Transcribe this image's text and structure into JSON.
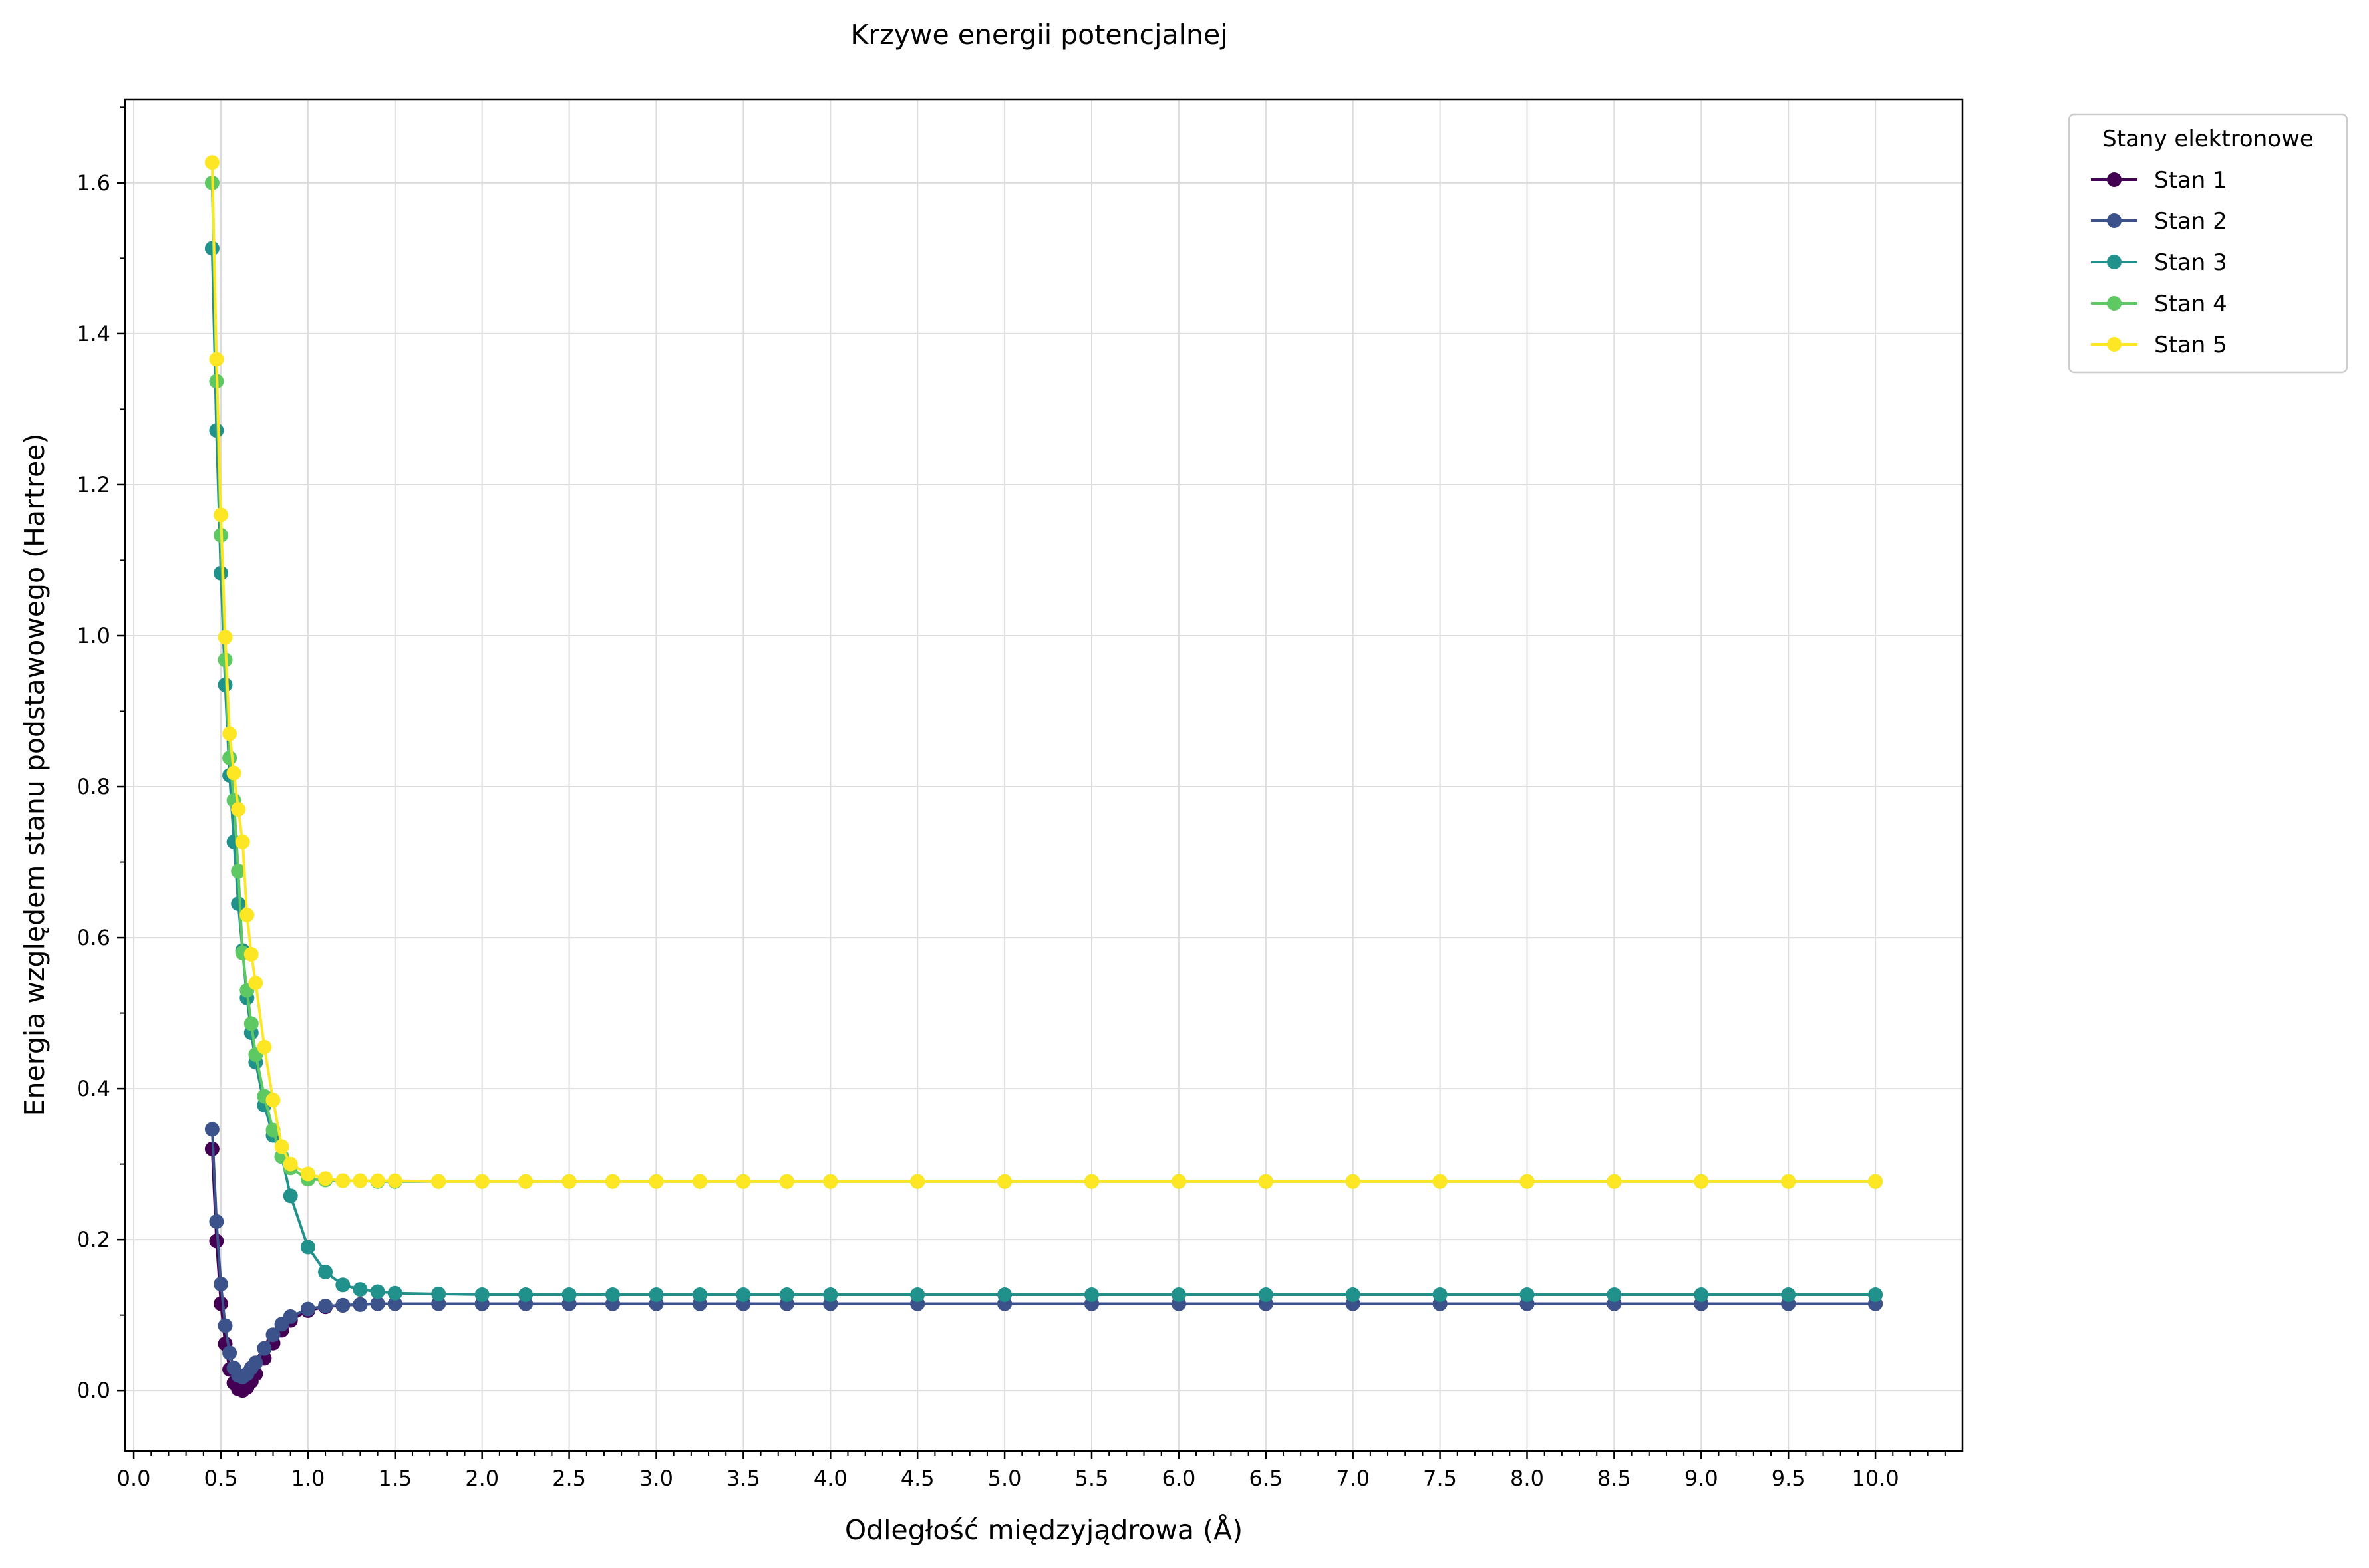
{
  "chart_data": {
    "type": "line",
    "title": "Krzywe energii potencjalnej",
    "xlabel": "Odległość międzyjądrowa (Å)",
    "ylabel": "Energia względem stanu podstawowego (Hartree)",
    "xlim": [
      -0.05,
      10.5
    ],
    "ylim": [
      -0.08,
      1.71
    ],
    "xticks": [
      "0.0",
      "0.5",
      "1.0",
      "1.5",
      "2.0",
      "2.5",
      "3.0",
      "3.5",
      "4.0",
      "4.5",
      "5.0",
      "5.5",
      "6.0",
      "6.5",
      "7.0",
      "7.5",
      "8.0",
      "8.5",
      "9.0",
      "9.5",
      "10.0"
    ],
    "yticks": [
      "0.0",
      "0.2",
      "0.4",
      "0.6",
      "0.8",
      "1.0",
      "1.2",
      "1.4",
      "1.6"
    ],
    "grid": true,
    "legend": {
      "title": "Stany elektronowe",
      "placement": "outside-top-right"
    },
    "x": [
      0.45,
      0.475,
      0.5,
      0.525,
      0.55,
      0.575,
      0.6,
      0.625,
      0.65,
      0.675,
      0.7,
      0.75,
      0.8,
      0.85,
      0.9,
      1.0,
      1.1,
      1.2,
      1.3,
      1.4,
      1.5,
      1.75,
      2.0,
      2.25,
      2.5,
      2.75,
      3.0,
      3.25,
      3.5,
      3.75,
      4.0,
      4.5,
      5.0,
      5.5,
      6.0,
      6.5,
      7.0,
      7.5,
      8.0,
      8.5,
      9.0,
      9.5,
      10.0
    ],
    "series": [
      {
        "name": "Stan 1",
        "color": "#440154",
        "values": [
          0.32,
          0.198,
          0.115,
          0.062,
          0.028,
          0.01,
          0.002,
          0.0,
          0.004,
          0.012,
          0.022,
          0.043,
          0.063,
          0.08,
          0.093,
          0.106,
          0.111,
          0.113,
          0.114,
          0.115,
          0.115,
          0.115,
          0.115,
          0.115,
          0.115,
          0.115,
          0.115,
          0.115,
          0.115,
          0.115,
          0.115,
          0.115,
          0.115,
          0.115,
          0.115,
          0.115,
          0.115,
          0.115,
          0.115,
          0.115,
          0.115,
          0.115,
          0.115
        ]
      },
      {
        "name": "Stan 2",
        "color": "#3b528b",
        "values": [
          0.346,
          0.224,
          0.141,
          0.086,
          0.05,
          0.03,
          0.02,
          0.018,
          0.022,
          0.03,
          0.037,
          0.056,
          0.074,
          0.088,
          0.098,
          0.108,
          0.112,
          0.113,
          0.114,
          0.115,
          0.115,
          0.115,
          0.115,
          0.115,
          0.115,
          0.115,
          0.115,
          0.115,
          0.115,
          0.115,
          0.115,
          0.115,
          0.115,
          0.115,
          0.115,
          0.115,
          0.115,
          0.115,
          0.115,
          0.115,
          0.115,
          0.115,
          0.115
        ]
      },
      {
        "name": "Stan 3",
        "color": "#21918c",
        "values": [
          1.513,
          1.272,
          1.083,
          0.935,
          0.815,
          0.727,
          0.645,
          0.583,
          0.52,
          0.474,
          0.435,
          0.378,
          0.338,
          0.31,
          0.258,
          0.19,
          0.157,
          0.14,
          0.134,
          0.131,
          0.129,
          0.128,
          0.127,
          0.127,
          0.127,
          0.127,
          0.127,
          0.127,
          0.127,
          0.127,
          0.127,
          0.127,
          0.127,
          0.127,
          0.127,
          0.127,
          0.127,
          0.127,
          0.127,
          0.127,
          0.127,
          0.127,
          0.127
        ]
      },
      {
        "name": "Stan 4",
        "color": "#5ec962",
        "values": [
          1.6,
          1.337,
          1.133,
          0.968,
          0.838,
          0.782,
          0.688,
          0.58,
          0.53,
          0.486,
          0.445,
          0.39,
          0.345,
          0.31,
          0.295,
          0.28,
          0.279,
          0.278,
          0.278,
          0.277,
          0.277,
          0.277,
          0.277,
          0.277,
          0.277,
          0.277,
          0.277,
          0.277,
          0.277,
          0.277,
          0.277,
          0.277,
          0.277,
          0.277,
          0.277,
          0.277,
          0.277,
          0.277,
          0.277,
          0.277,
          0.277,
          0.277,
          0.277
        ]
      },
      {
        "name": "Stan 5",
        "color": "#fde725",
        "values": [
          1.627,
          1.366,
          1.16,
          0.998,
          0.87,
          0.818,
          0.77,
          0.727,
          0.63,
          0.578,
          0.54,
          0.455,
          0.385,
          0.323,
          0.3,
          0.287,
          0.281,
          0.278,
          0.278,
          0.278,
          0.278,
          0.277,
          0.277,
          0.277,
          0.277,
          0.277,
          0.277,
          0.277,
          0.277,
          0.277,
          0.277,
          0.277,
          0.277,
          0.277,
          0.277,
          0.277,
          0.277,
          0.277,
          0.277,
          0.277,
          0.277,
          0.277,
          0.277
        ]
      }
    ]
  }
}
